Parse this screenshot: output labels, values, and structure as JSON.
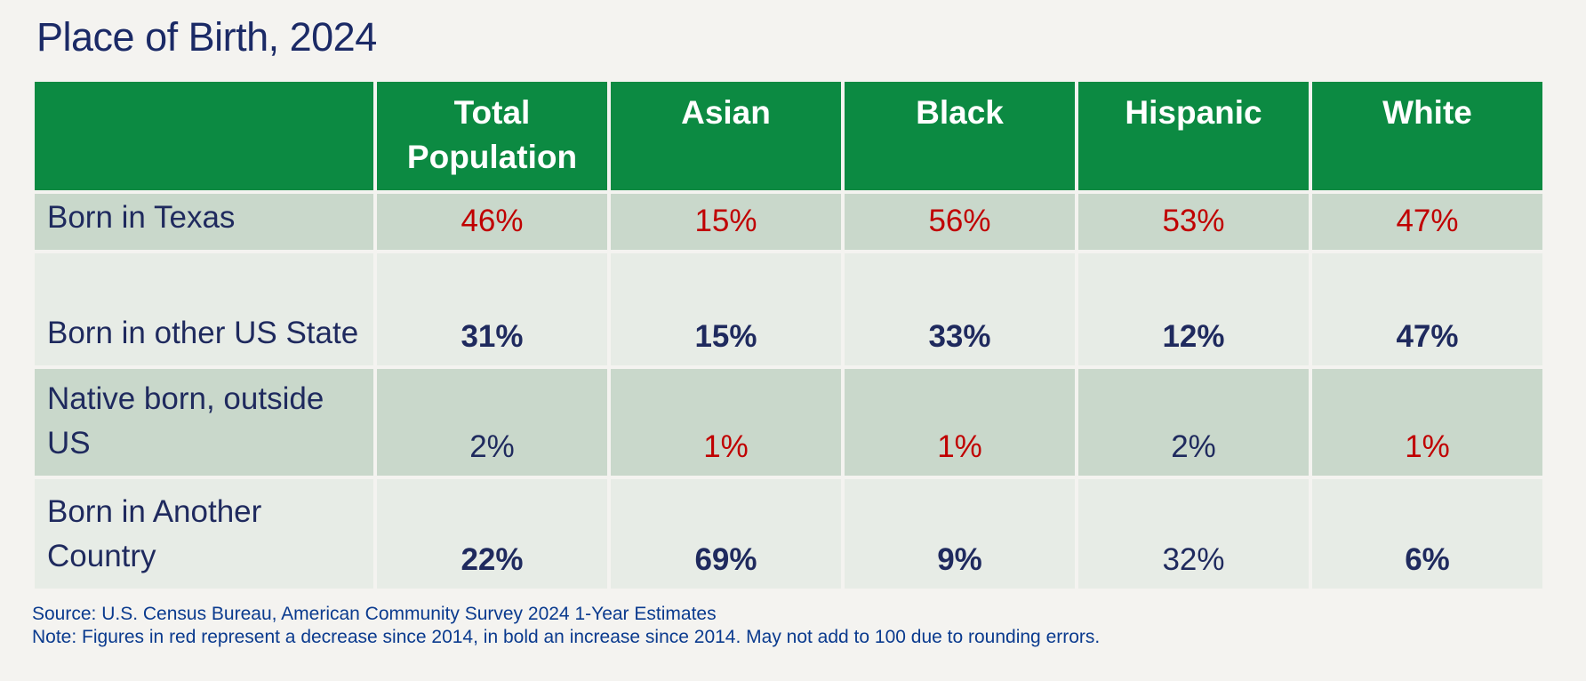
{
  "title": "Place of Birth, 2024",
  "colors": {
    "header_green": "#0c8a42",
    "row_band_dark": "#c9d8cb",
    "row_band_light": "#e7ece6",
    "text_navy": "#1f2a5e",
    "footer_blue": "#0a3a8e",
    "decrease_red": "#c00000",
    "page_background": "#f4f3f0"
  },
  "chart_data": {
    "type": "table",
    "title": "Place of Birth, 2024",
    "categories": [
      "Total Population",
      "Asian",
      "Black",
      "Hispanic",
      "White"
    ],
    "series": [
      {
        "name": "Born in Texas",
        "values": [
          46,
          15,
          56,
          53,
          47
        ],
        "unit": "%",
        "styles": [
          "red",
          "red",
          "red",
          "red",
          "red"
        ]
      },
      {
        "name": "Born in other US State",
        "values": [
          31,
          15,
          33,
          12,
          47
        ],
        "unit": "%",
        "styles": [
          "bold",
          "bold",
          "bold",
          "bold",
          "bold"
        ]
      },
      {
        "name": "Native born, outside US",
        "values": [
          2,
          1,
          1,
          2,
          1
        ],
        "unit": "%",
        "styles": [
          "plain",
          "red",
          "red",
          "plain",
          "red"
        ]
      },
      {
        "name": "Born in Another Country",
        "values": [
          22,
          69,
          9,
          32,
          6
        ],
        "unit": "%",
        "styles": [
          "bold",
          "bold",
          "bold",
          "plain",
          "bold"
        ]
      }
    ],
    "legend_note": "red = decrease since 2014, bold = increase since 2014"
  },
  "table": {
    "columns": [
      "Total Population",
      "Asian",
      "Black",
      "Hispanic",
      "White"
    ],
    "rows": [
      {
        "label": "Born in Texas",
        "values": [
          {
            "text": "46%",
            "style": "red"
          },
          {
            "text": "15%",
            "style": "red"
          },
          {
            "text": "56%",
            "style": "red"
          },
          {
            "text": "53%",
            "style": "red"
          },
          {
            "text": "47%",
            "style": "red"
          }
        ]
      },
      {
        "label": "Born in other US State",
        "values": [
          {
            "text": "31%",
            "style": "bold"
          },
          {
            "text": "15%",
            "style": "bold"
          },
          {
            "text": "33%",
            "style": "bold"
          },
          {
            "text": "12%",
            "style": "bold"
          },
          {
            "text": "47%",
            "style": "bold"
          }
        ]
      },
      {
        "label": "Native born, outside US",
        "values": [
          {
            "text": "2%",
            "style": "plain"
          },
          {
            "text": "1%",
            "style": "red"
          },
          {
            "text": "1%",
            "style": "red"
          },
          {
            "text": "2%",
            "style": "plain"
          },
          {
            "text": "1%",
            "style": "red"
          }
        ]
      },
      {
        "label": "Born in Another Country",
        "values": [
          {
            "text": "22%",
            "style": "bold"
          },
          {
            "text": "69%",
            "style": "bold"
          },
          {
            "text": "9%",
            "style": "bold"
          },
          {
            "text": "32%",
            "style": "plain"
          },
          {
            "text": "6%",
            "style": "bold"
          }
        ]
      }
    ]
  },
  "footer": {
    "source": "Source: U.S. Census Bureau, American Community Survey 2024 1-Year Estimates",
    "note": "Note: Figures in red represent a decrease since 2014, in bold an increase since 2014. May not add to 100 due to rounding errors."
  }
}
